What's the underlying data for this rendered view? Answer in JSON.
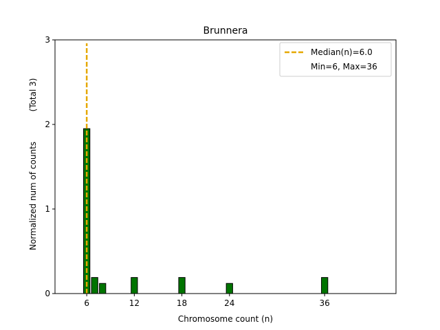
{
  "chart_data": {
    "type": "bar",
    "title": "Brunnera",
    "xlabel": "Chromosome count (n)",
    "ylabel": "Normalized num of counts",
    "ylabel_note": "(Total 3)",
    "xlim": [
      2,
      45
    ],
    "ylim": [
      0,
      3
    ],
    "x_ticks": [
      6,
      12,
      18,
      24,
      36
    ],
    "y_ticks": [
      0,
      1,
      2,
      3
    ],
    "bar_width": 0.8,
    "bars": [
      {
        "x": 6,
        "value": 1.95
      },
      {
        "x": 7,
        "value": 0.19
      },
      {
        "x": 8,
        "value": 0.12
      },
      {
        "x": 12,
        "value": 0.19
      },
      {
        "x": 18,
        "value": 0.19
      },
      {
        "x": 24,
        "value": 0.12
      },
      {
        "x": 36,
        "value": 0.19
      }
    ],
    "median": 6.0,
    "legend": {
      "position": "top-right",
      "entries": [
        "Median(n)=6.0",
        "Min=6, Max=36"
      ]
    },
    "colors": {
      "bar_fill": "#007400",
      "bar_edge": "#000000",
      "median_line": "#e6a800"
    }
  }
}
